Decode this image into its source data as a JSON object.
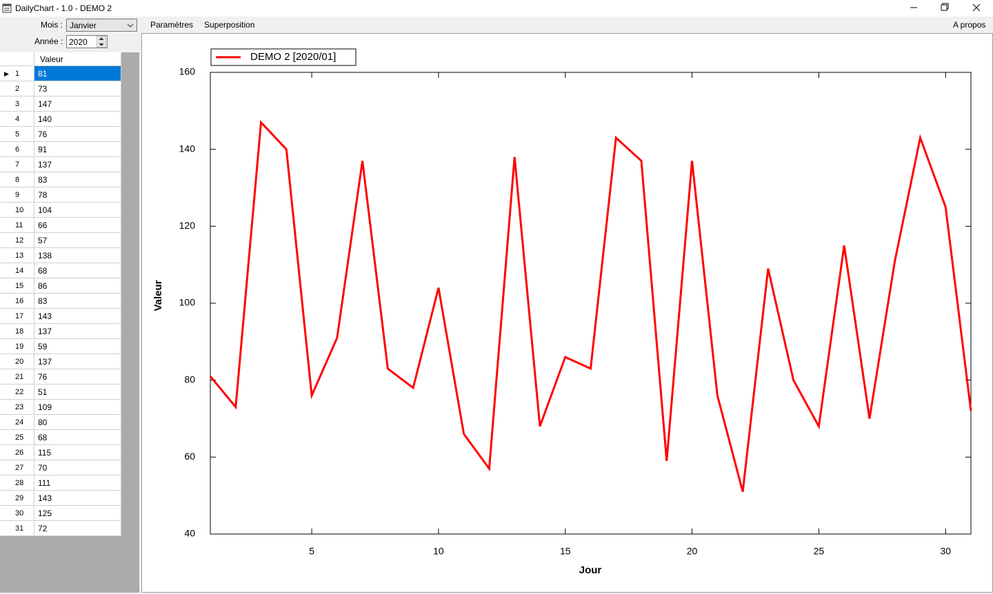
{
  "window": {
    "title": "DailyChart - 1.0 - DEMO 2"
  },
  "menu": [
    "Paramètres",
    "Superposition",
    "A propos"
  ],
  "form": {
    "month_label": "Mois :",
    "month": "Janvier",
    "year_label": "Année :",
    "year": "2020"
  },
  "table": {
    "header": "Valeur"
  },
  "chart_data": {
    "type": "line",
    "x": [
      1,
      2,
      3,
      4,
      5,
      6,
      7,
      8,
      9,
      10,
      11,
      12,
      13,
      14,
      15,
      16,
      17,
      18,
      19,
      20,
      21,
      22,
      23,
      24,
      25,
      26,
      27,
      28,
      29,
      30,
      31
    ],
    "series": [
      {
        "name": "DEMO 2 [2020/01]",
        "color": "#ff0000",
        "values": [
          81,
          73,
          147,
          140,
          76,
          91,
          137,
          83,
          78,
          104,
          66,
          57,
          138,
          68,
          86,
          83,
          143,
          137,
          59,
          137,
          76,
          51,
          109,
          80,
          68,
          115,
          70,
          111,
          143,
          125,
          72
        ]
      }
    ],
    "xlabel": "Jour",
    "ylabel": "Valeur",
    "xlim": [
      1,
      31
    ],
    "ylim": [
      40,
      160
    ],
    "xticks": [
      5,
      10,
      15,
      20,
      25,
      30
    ],
    "yticks": [
      40,
      60,
      80,
      100,
      120,
      140,
      160
    ],
    "legend": "upper left"
  }
}
